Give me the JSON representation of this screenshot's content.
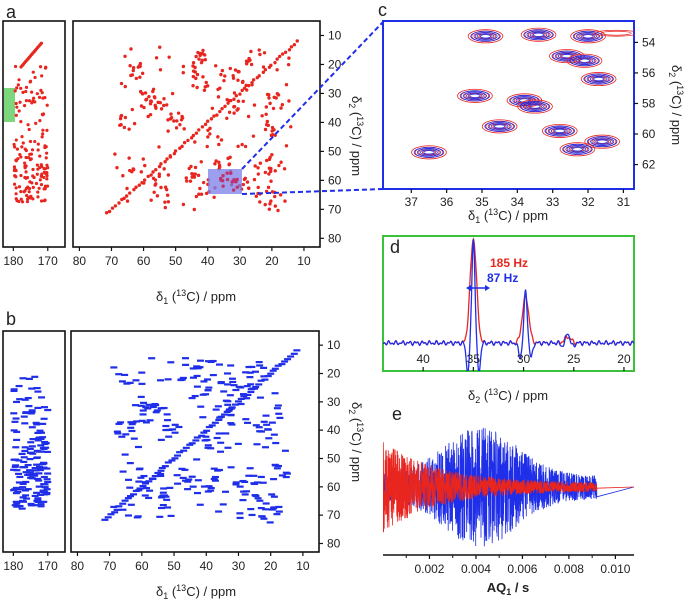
{
  "chart_data": [
    {
      "panel": "a",
      "type": "heatmap",
      "label": "a",
      "xlabel": "δ1 (13C) / ppm",
      "ylabel": "δ2 (13C) / ppm",
      "x_ticks_main": [
        "80",
        "70",
        "60",
        "50",
        "40",
        "30",
        "20",
        "10"
      ],
      "x_ticks_inset": [
        "180",
        "170"
      ],
      "y_ticks": [
        "10",
        "20",
        "30",
        "40",
        "50",
        "60",
        "70",
        "80"
      ],
      "xlim": [
        82,
        5
      ],
      "ylim": [
        5,
        83
      ],
      "color": "#e8251f",
      "highlight_colors": {
        "box": "#7b7fe8",
        "inset_box": "#7cd67c"
      }
    },
    {
      "panel": "b",
      "type": "heatmap",
      "label": "b",
      "xlabel": "δ1 (13C) / ppm",
      "ylabel": "δ2 (13C) / ppm",
      "x_ticks_main": [
        "80",
        "70",
        "60",
        "50",
        "40",
        "30",
        "20",
        "10"
      ],
      "x_ticks_inset": [
        "180",
        "170"
      ],
      "y_ticks": [
        "10",
        "20",
        "30",
        "40",
        "50",
        "60",
        "70",
        "80"
      ],
      "xlim": [
        82,
        5
      ],
      "ylim": [
        5,
        83
      ],
      "color": "#1f2ee8"
    },
    {
      "panel": "c",
      "type": "heatmap",
      "label": "c",
      "xlabel": "δ1 (13C) / ppm",
      "ylabel": "δ2 (13C) / ppm",
      "x_ticks": [
        "37",
        "36",
        "35",
        "34",
        "33",
        "32",
        "31"
      ],
      "y_ticks": [
        "54",
        "56",
        "58",
        "60",
        "62"
      ],
      "xlim": [
        37.8,
        30.7
      ],
      "ylim": [
        52.6,
        63.6
      ],
      "series": [
        {
          "color": "#e8251f"
        },
        {
          "color": "#1f2ee8"
        }
      ]
    },
    {
      "panel": "d",
      "type": "line",
      "label": "d",
      "xlabel": "δ2 (13C) / ppm",
      "x_ticks": [
        "40",
        "35",
        "30",
        "25",
        "20"
      ],
      "xlim": [
        44,
        19
      ],
      "annotations": [
        {
          "text": "185 Hz",
          "color": "#e8251f"
        },
        {
          "text": "87 Hz",
          "color": "#1f2ee8"
        }
      ],
      "peaks": [
        {
          "x": 35.0,
          "red": 1.0,
          "blue": 1.0
        },
        {
          "x": 29.8,
          "red": 0.45,
          "blue": 0.5
        },
        {
          "x": 25.6,
          "red": 0.06,
          "blue": 0.1
        }
      ],
      "frame_color": "#39c23a"
    },
    {
      "panel": "e",
      "type": "line",
      "label": "e",
      "xlabel": "AQ1 / s",
      "x_ticks": [
        "0.002",
        "0.004",
        "0.006",
        "0.008",
        "0.010"
      ],
      "xlim": [
        0,
        0.0108
      ],
      "series": [
        {
          "color": "#1f2ee8",
          "description_free": true
        },
        {
          "color": "#e8251f"
        }
      ]
    }
  ]
}
